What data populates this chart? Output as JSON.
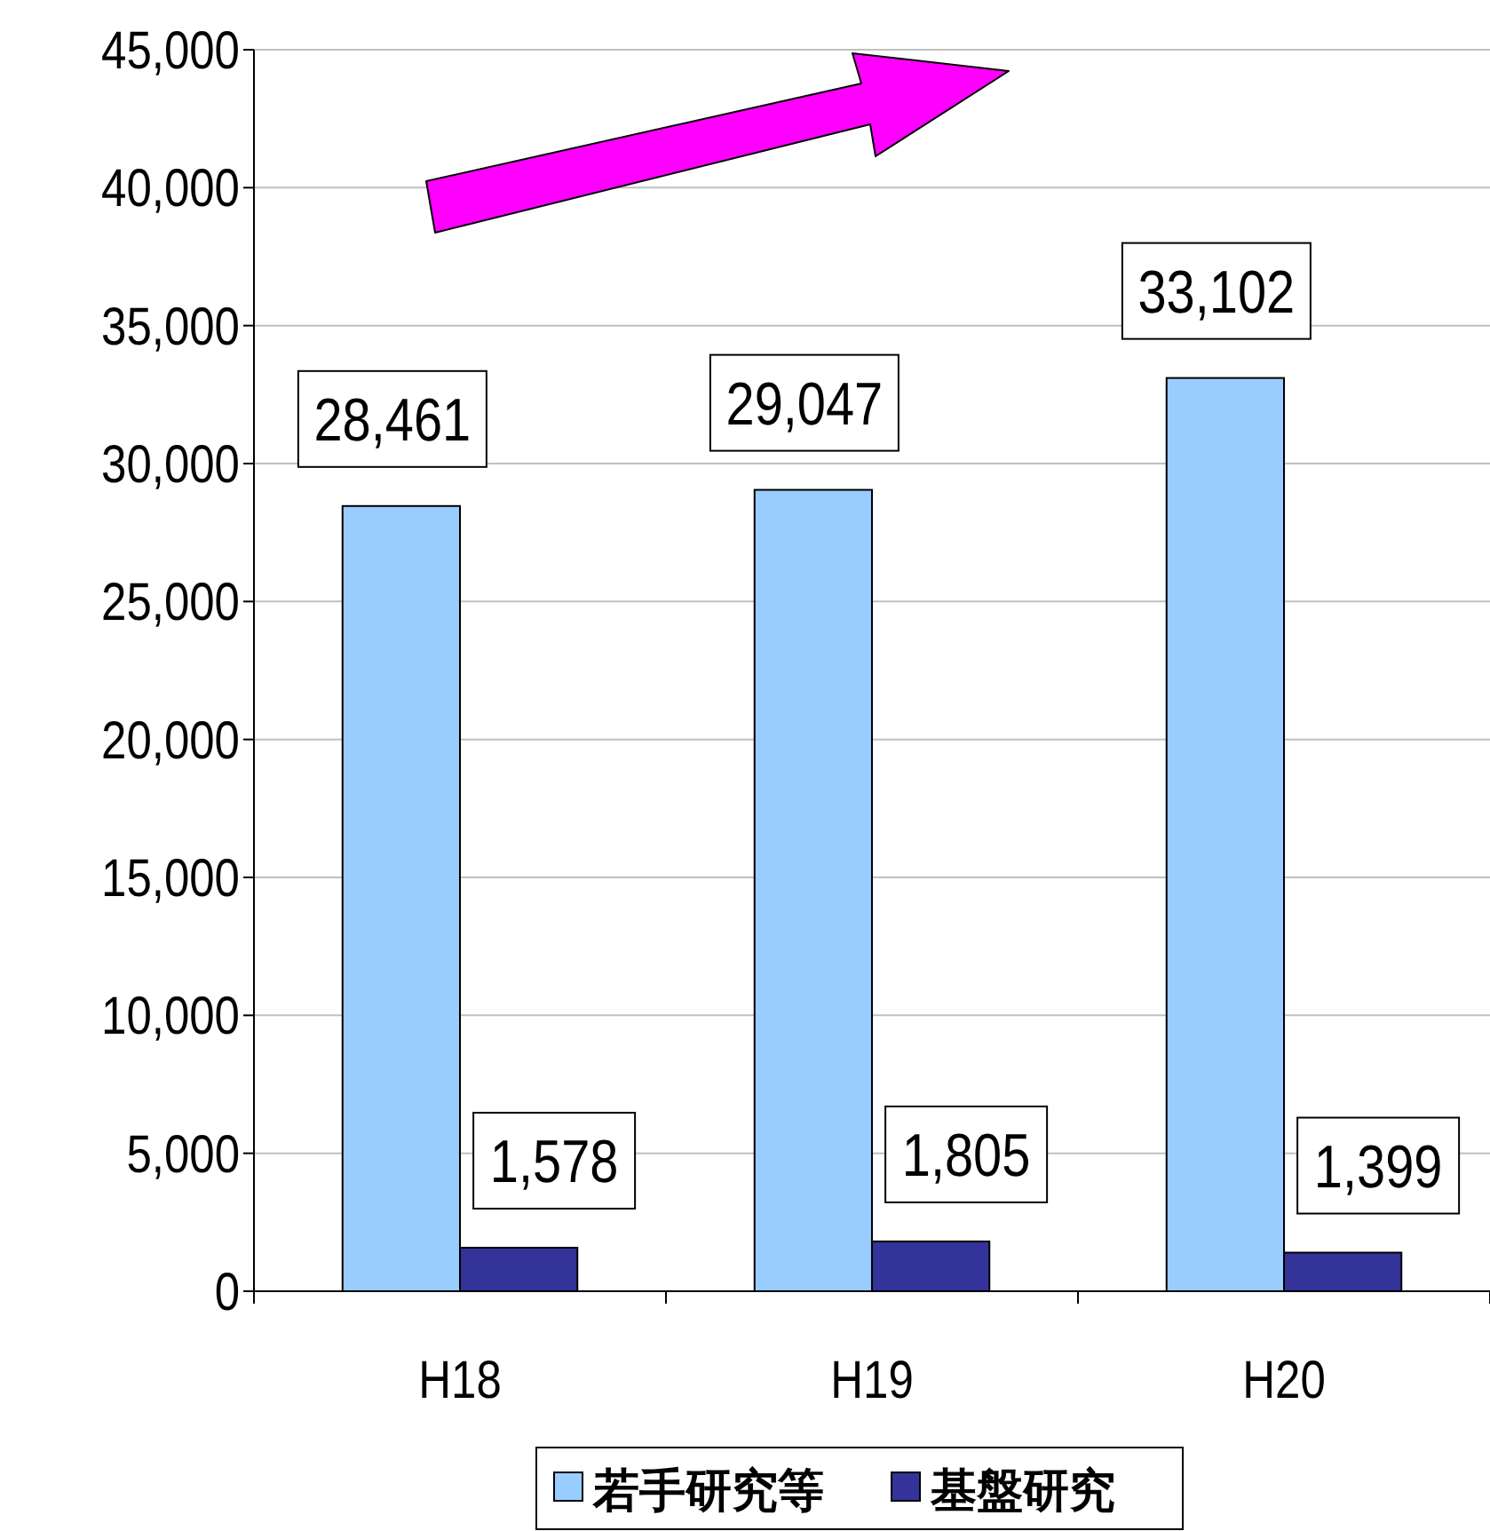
{
  "chart_data": {
    "type": "bar",
    "categories": [
      "H18",
      "H19",
      "H20"
    ],
    "series": [
      {
        "name": "若手研究等",
        "color": "#99ccff",
        "values": [
          28461,
          29047,
          33102
        ],
        "value_labels": [
          "28,461",
          "29,047",
          "33,102"
        ]
      },
      {
        "name": "基盤研究",
        "color": "#333399",
        "values": [
          1578,
          1805,
          1399
        ],
        "value_labels": [
          "1,578",
          "1,805",
          "1,399"
        ]
      }
    ],
    "ylim": [
      0,
      45000
    ],
    "yticks": [
      {
        "value": 0,
        "label": "0"
      },
      {
        "value": 5000,
        "label": "5,000"
      },
      {
        "value": 10000,
        "label": "10,000"
      },
      {
        "value": 15000,
        "label": "15,000"
      },
      {
        "value": 20000,
        "label": "20,000"
      },
      {
        "value": 25000,
        "label": "25,000"
      },
      {
        "value": 30000,
        "label": "30,000"
      },
      {
        "value": 35000,
        "label": "35,000"
      },
      {
        "value": 40000,
        "label": "40,000"
      },
      {
        "value": 45000,
        "label": "45,000"
      }
    ],
    "grid": "y",
    "legend": "bottom"
  }
}
